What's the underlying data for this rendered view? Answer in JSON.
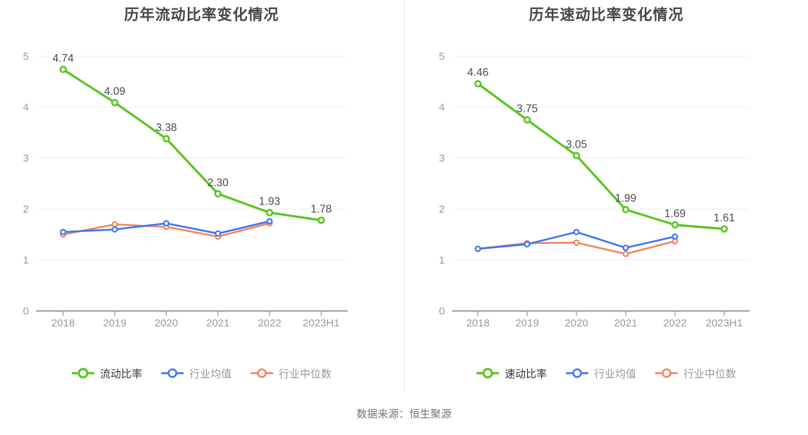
{
  "chart_data": [
    {
      "type": "line",
      "title": "历年流动比率变化情况",
      "categories": [
        "2018",
        "2019",
        "2020",
        "2021",
        "2022",
        "2023H1"
      ],
      "series": [
        {
          "name": "流动比率",
          "color": "#58c520",
          "values": [
            4.74,
            4.09,
            3.38,
            2.3,
            1.93,
            1.78
          ],
          "labels": [
            "4.74",
            "4.09",
            "3.38",
            "2.30",
            "1.93",
            "1.78"
          ]
        },
        {
          "name": "行业均值",
          "color": "#3e76f0",
          "values": [
            1.55,
            1.6,
            1.72,
            1.52,
            1.76,
            null
          ]
        },
        {
          "name": "行业中位数",
          "color": "#f3845c",
          "values": [
            1.5,
            1.7,
            1.65,
            1.46,
            1.72,
            null
          ]
        }
      ],
      "xlabel": "",
      "ylabel": "",
      "ylim": [
        0,
        5
      ],
      "yticks": [
        0,
        1,
        2,
        3,
        4,
        5
      ],
      "grid": true,
      "legend_position": "bottom"
    },
    {
      "type": "line",
      "title": "历年速动比率变化情况",
      "categories": [
        "2018",
        "2019",
        "2020",
        "2021",
        "2022",
        "2023H1"
      ],
      "series": [
        {
          "name": "速动比率",
          "color": "#58c520",
          "values": [
            4.46,
            3.75,
            3.05,
            1.99,
            1.69,
            1.61
          ],
          "labels": [
            "4.46",
            "3.75",
            "3.05",
            "1.99",
            "1.69",
            "1.61"
          ]
        },
        {
          "name": "行业均值",
          "color": "#3e76f0",
          "values": [
            1.22,
            1.31,
            1.55,
            1.24,
            1.46,
            null
          ]
        },
        {
          "name": "行业中位数",
          "color": "#f3845c",
          "values": [
            1.22,
            1.33,
            1.34,
            1.12,
            1.37,
            null
          ]
        }
      ],
      "xlabel": "",
      "ylabel": "",
      "ylim": [
        0,
        5
      ],
      "yticks": [
        0,
        1,
        2,
        3,
        4,
        5
      ],
      "grid": true,
      "legend_position": "bottom"
    }
  ],
  "footer": {
    "source_label": "数据来源：恒生聚源"
  },
  "colors": {
    "main_series": "#58c520",
    "industry_mean": "#3e76f0",
    "industry_median": "#f3845c",
    "grid_line": "#e9edf6",
    "axis_line": "#9a9a9a",
    "axis_text": "#999999",
    "data_label": "#4a4a4a",
    "title_text": "#454545"
  }
}
